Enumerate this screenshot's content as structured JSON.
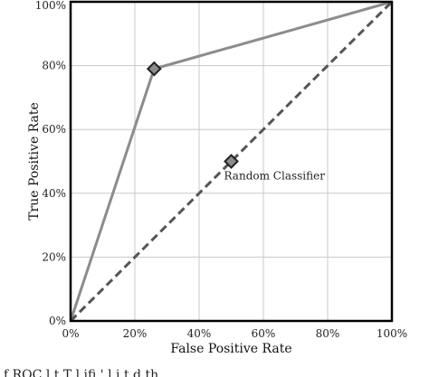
{
  "chart_data": {
    "type": "line",
    "xlabel": "False Positive Rate",
    "ylabel": "True Positive Rate",
    "xlim": [
      0,
      100
    ],
    "ylim": [
      0,
      100
    ],
    "x_ticks": [
      "0%",
      "20%",
      "40%",
      "60%",
      "80%",
      "100%"
    ],
    "y_ticks": [
      "0%",
      "20%",
      "40%",
      "60%",
      "80%",
      "100%"
    ],
    "grid": true,
    "series": [
      {
        "style": "solid",
        "color": "#8c8c8c",
        "points": [
          {
            "x": 0,
            "y": 0
          },
          {
            "x": 26,
            "y": 79
          },
          {
            "x": 100,
            "y": 100
          }
        ],
        "markers": [
          {
            "x": 26,
            "y": 79
          }
        ]
      },
      {
        "name": "Random Classifier",
        "style": "dashed",
        "color": "#555555",
        "points": [
          {
            "x": 0,
            "y": 0
          },
          {
            "x": 100,
            "y": 100
          }
        ],
        "markers": [
          {
            "x": 50,
            "y": 50
          }
        ]
      }
    ],
    "annotations": [
      {
        "text": "Random Classifier",
        "x": 50,
        "y": 50
      }
    ],
    "marker_fill": "#8a8a8a",
    "marker_stroke": "#222222",
    "grid_color": "#c8c8c8",
    "frame_color": "#000000"
  },
  "caption": "f    ROC  l t  T    l  ifi  '             l  i t d th"
}
